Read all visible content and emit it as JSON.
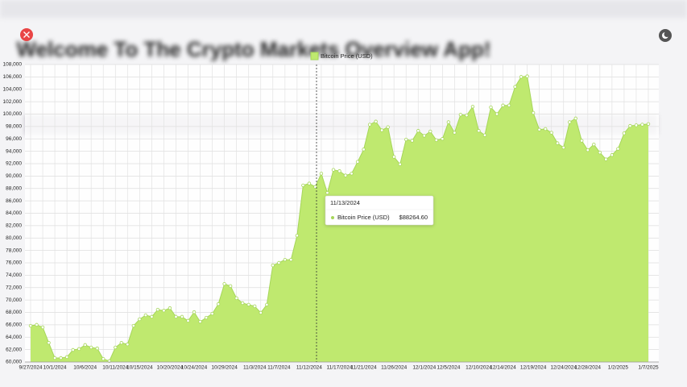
{
  "background_title": "Welcome To The Crypto Markets Overview App!",
  "chart_data": {
    "type": "area",
    "categories": [
      "9/27/2024",
      null,
      null,
      null,
      "10/1/2024",
      null,
      null,
      null,
      null,
      "10/6/2024",
      null,
      null,
      null,
      null,
      "10/11/2024",
      null,
      null,
      null,
      "10/15/2024",
      null,
      null,
      null,
      null,
      "10/20/2024",
      null,
      null,
      null,
      "10/24/2024",
      null,
      null,
      null,
      null,
      "10/29/2024",
      null,
      null,
      null,
      null,
      "11/3/2024",
      null,
      null,
      null,
      "11/7/2024",
      null,
      null,
      null,
      null,
      "11/12/2024",
      null,
      null,
      null,
      null,
      "11/17/2024",
      null,
      null,
      null,
      "11/21/2024",
      null,
      null,
      null,
      null,
      "11/26/2024",
      null,
      null,
      null,
      null,
      "12/1/2024",
      null,
      null,
      null,
      "12/5/2024",
      null,
      null,
      null,
      null,
      "12/10/2024",
      null,
      null,
      null,
      "12/14/2024",
      null,
      null,
      null,
      null,
      "12/19/2024",
      null,
      null,
      null,
      null,
      "12/24/2024",
      null,
      null,
      null,
      "12/28/2024",
      null,
      null,
      null,
      null,
      "1/2/2025",
      null,
      null,
      null,
      null,
      "1/7/2025"
    ],
    "series": [
      {
        "name": "Bitcoin Price (USD)",
        "color": "#bfe96f",
        "line_color": "#a6d65a",
        "values": [
          65850,
          66000,
          65600,
          63100,
          60650,
          60650,
          60800,
          61950,
          62100,
          62750,
          62350,
          62200,
          60500,
          60150,
          62350,
          63100,
          62850,
          65850,
          66900,
          67550,
          67300,
          68450,
          68300,
          68700,
          67300,
          67300,
          66650,
          68050,
          66500,
          67150,
          67800,
          69350,
          72600,
          72250,
          70300,
          69500,
          69250,
          69000,
          67950,
          69250,
          75600,
          76000,
          76500,
          76500,
          80400,
          88500,
          88800,
          88264.6,
          90400,
          87300,
          91000,
          90800,
          90100,
          90400,
          92300,
          94300,
          98300,
          98800,
          97400,
          97900,
          93100,
          91900,
          95900,
          95700,
          97300,
          96500,
          97200,
          95800,
          96000,
          98700,
          97000,
          99900,
          99800,
          101200,
          97300,
          96600,
          101100,
          100000,
          101400,
          101400,
          104400,
          106000,
          106100,
          100200,
          97500,
          97600,
          97000,
          95300,
          94600,
          98700,
          99300,
          95700,
          94200,
          95100,
          93800,
          92700,
          93400,
          94400,
          96900,
          98100,
          98200,
          98300,
          98400
        ]
      }
    ],
    "ylim": [
      60000,
      108000
    ],
    "yticks": [
      {
        "value": 60000,
        "label": "60,000"
      },
      {
        "value": 62000,
        "label": "62,000"
      },
      {
        "value": 64000,
        "label": "64,000"
      },
      {
        "value": 66000,
        "label": "66,000"
      },
      {
        "value": 68000,
        "label": "68,000"
      },
      {
        "value": 70000,
        "label": "70,000"
      },
      {
        "value": 72000,
        "label": "72,000"
      },
      {
        "value": 74000,
        "label": "74,000"
      },
      {
        "value": 76000,
        "label": "76,000"
      },
      {
        "value": 78000,
        "label": "78,000"
      },
      {
        "value": 80000,
        "label": "80,000"
      },
      {
        "value": 82000,
        "label": "82,000"
      },
      {
        "value": 84000,
        "label": "84,000"
      },
      {
        "value": 86000,
        "label": "86,000"
      },
      {
        "value": 88000,
        "label": "88,000"
      },
      {
        "value": 90000,
        "label": "90,000"
      },
      {
        "value": 92000,
        "label": "92,000"
      },
      {
        "value": 94000,
        "label": "94,000"
      },
      {
        "value": 96000,
        "label": "96,000"
      },
      {
        "value": 98000,
        "label": "98,000"
      },
      {
        "value": 100000,
        "label": "100,000"
      },
      {
        "value": 102000,
        "label": "102,000"
      },
      {
        "value": 104000,
        "label": "104,000"
      },
      {
        "value": 106000,
        "label": "106,000"
      },
      {
        "value": 108000,
        "label": "108,000"
      }
    ],
    "grid": true,
    "tooltip": {
      "date": "11/13/2024",
      "label": "$88264.60"
    }
  }
}
